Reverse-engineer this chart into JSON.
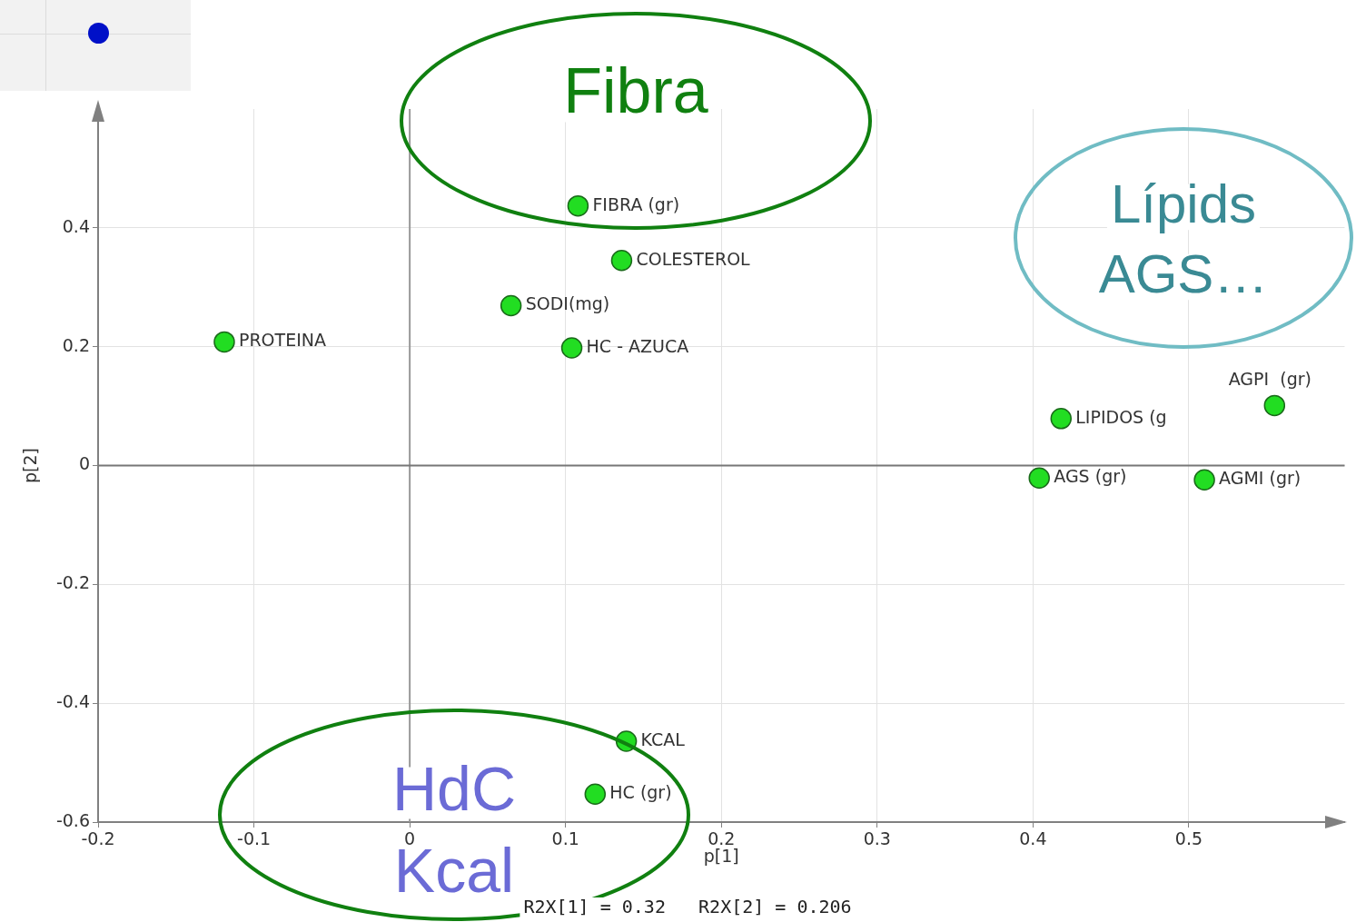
{
  "chart_data": {
    "type": "scatter",
    "xlabel": "p[1]",
    "ylabel": "p[2]",
    "xlim": [
      -0.2,
      0.6
    ],
    "ylim": [
      -0.6,
      0.6
    ],
    "xticks": [
      -0.2,
      -0.1,
      0,
      0.1,
      0.2,
      0.3,
      0.4,
      0.5
    ],
    "yticks": [
      -0.6,
      -0.4,
      -0.2,
      0,
      0.2,
      0.4
    ],
    "grid": true,
    "legend": false,
    "marker": "circle",
    "ref_lines": [
      {
        "axis": "x",
        "value": 0,
        "color": "#999999"
      },
      {
        "axis": "y",
        "value": 0,
        "color": "#777777"
      }
    ],
    "annotations": [
      "Fibra",
      "Lípids AGS…",
      "HdC Kcal",
      "R2X[1] = 0.32   R2X[2] = 0.206"
    ],
    "series": [
      {
        "name": "FIBRA (gr)",
        "color": "#22dd22",
        "x": [
          0.108
        ],
        "values": [
          0.437
        ]
      },
      {
        "name": "COLESTEROL",
        "color": "#22dd22",
        "x": [
          0.136
        ],
        "values": [
          0.345
        ]
      },
      {
        "name": "SODI(mg)",
        "color": "#22dd22",
        "x": [
          0.065
        ],
        "values": [
          0.269
        ]
      },
      {
        "name": "PROTEINA",
        "color": "#22dd22",
        "x": [
          -0.119
        ],
        "values": [
          0.208
        ]
      },
      {
        "name": "HC - AZUCA",
        "color": "#22dd22",
        "x": [
          0.104
        ],
        "values": [
          0.198
        ]
      },
      {
        "name": "AGPI  (gr)",
        "color": "#22dd22",
        "x": [
          0.555
        ],
        "values": [
          0.101
        ]
      },
      {
        "name": "LIPIDOS (g",
        "color": "#22dd22",
        "x": [
          0.418
        ],
        "values": [
          0.079
        ]
      },
      {
        "name": "AGS (gr)",
        "color": "#22dd22",
        "x": [
          0.404
        ],
        "values": [
          -0.021
        ]
      },
      {
        "name": "AGMI (gr)",
        "color": "#22dd22",
        "x": [
          0.51
        ],
        "values": [
          -0.024
        ]
      },
      {
        "name": "KCAL",
        "color": "#22dd22",
        "x": [
          0.139
        ],
        "values": [
          -0.464
        ]
      },
      {
        "name": "HC (gr)",
        "color": "#22dd22",
        "x": [
          0.119
        ],
        "values": [
          -0.553
        ]
      }
    ]
  }
}
